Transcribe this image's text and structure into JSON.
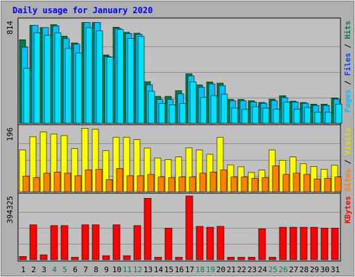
{
  "chart_data": {
    "type": "bar",
    "title": "Daily usage for January 2020",
    "categories": [
      "1",
      "2",
      "3",
      "4",
      "5",
      "6",
      "7",
      "8",
      "9",
      "10",
      "11",
      "12",
      "13",
      "14",
      "15",
      "16",
      "17",
      "18",
      "19",
      "20",
      "21",
      "22",
      "23",
      "24",
      "25",
      "26",
      "27",
      "28",
      "29",
      "30",
      "31"
    ],
    "weekend_days": [
      4,
      5,
      11,
      12,
      18,
      19,
      25,
      26
    ],
    "panels": [
      {
        "name": "hits-files-pages",
        "max_label": "814",
        "ymax": 814,
        "right_labels": [
          "Pages",
          "Files",
          "Hits"
        ],
        "series": [
          {
            "name": "Hits",
            "color": "#008040",
            "values": [
              664,
              777,
              760,
              783,
              692,
              638,
              800,
              800,
              543,
              763,
              722,
              715,
              330,
              214,
              214,
              259,
              393,
              304,
              328,
              319,
              189,
              189,
              179,
              165,
              192,
              219,
              176,
              165,
              152,
              152,
              202
            ]
          },
          {
            "name": "Files",
            "color": "#00c0ff",
            "values": [
              604,
              777,
              760,
              773,
              672,
              628,
              800,
              800,
              529,
              753,
              712,
              705,
              305,
              189,
              189,
              234,
              376,
              286,
              313,
              299,
              179,
              179,
              169,
              159,
              179,
              204,
              169,
              159,
              142,
              142,
              192
            ]
          },
          {
            "name": "Pages",
            "color": "#00e0ff",
            "values": [
              436,
              719,
              699,
              719,
              594,
              557,
              759,
              734,
              524,
              744,
              674,
              689,
              254,
              157,
              147,
              157,
              329,
              206,
              220,
              231,
              121,
              110,
              132,
              121,
              111,
              166,
              111,
              126,
              88,
              88,
              152
            ]
          }
        ]
      },
      {
        "name": "visits-sites",
        "max_label": "196",
        "ymax": 196,
        "right_labels": [
          "Sites",
          "Visits"
        ],
        "series": [
          {
            "name": "Visits",
            "color": "#ffff00",
            "values": [
              127,
              168,
              182,
              176,
              171,
              132,
              193,
              190,
              125,
              166,
              166,
              159,
              133,
              103,
              98,
              106,
              134,
              127,
              114,
              166,
              82,
              76,
              59,
              66,
              127,
              96,
              106,
              86,
              77,
              69,
              81
            ]
          },
          {
            "name": "Sites",
            "color": "#ff8000",
            "values": [
              48,
              43,
              57,
              60,
              57,
              49,
              67,
              68,
              37,
              71,
              49,
              49,
              53,
              45,
              43,
              45,
              45,
              57,
              60,
              67,
              45,
              45,
              41,
              43,
              79,
              53,
              57,
              53,
              39,
              41,
              45
            ]
          }
        ]
      },
      {
        "name": "kbytes",
        "max_label": "394325",
        "ymax": 394325,
        "right_labels": [
          "KBytes"
        ],
        "series": [
          {
            "name": "KBytes",
            "color": "#ff0000",
            "values": [
              20000,
              216000,
              30000,
              211000,
              211000,
              15000,
              216000,
              216000,
              25000,
              216000,
              25000,
              211000,
              380000,
              15000,
              196000,
              15000,
              394325,
              206000,
              201000,
              206000,
              15000,
              15000,
              15000,
              191000,
              15000,
              201000,
              201000,
              201000,
              201000,
              196000,
              196000
            ]
          }
        ]
      }
    ],
    "colors": {
      "background": "#b0b0b0",
      "plot": "#c0c0c0",
      "title": "#0000ff",
      "weekday_label": "#000000",
      "weekend_label": "#00805c",
      "grid": "#909090",
      "bar_border": "#000000",
      "separator": "#000000"
    }
  }
}
